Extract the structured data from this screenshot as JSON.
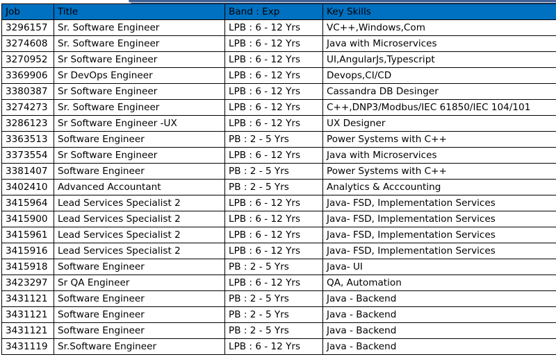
{
  "table": {
    "headers": [
      "Job",
      "Title",
      "Band : Exp",
      "Key Skills"
    ],
    "rows": [
      [
        "3296157",
        "Sr. Software Engineer",
        "LPB : 6 - 12 Yrs",
        "VC++,Windows,Com"
      ],
      [
        "3274608",
        "Sr. Software Engineer",
        "LPB : 6 - 12 Yrs",
        "Java with Microservices"
      ],
      [
        "3270952",
        "Sr Software Engineer",
        "LPB : 6 - 12 Yrs",
        "UI,AngularJs,Typescript"
      ],
      [
        "3369906",
        "Sr DevOps Engineer",
        "LPB : 6 - 12 Yrs",
        "Devops,CI/CD"
      ],
      [
        "3380387",
        "Sr Software Engineer",
        "LPB : 6 - 12 Yrs",
        "Cassandra DB Desinger"
      ],
      [
        "3274273",
        "Sr. Software Engineer",
        "LPB : 6 - 12 Yrs",
        "C++,DNP3/Modbus/IEC 61850/IEC 104/101"
      ],
      [
        "3286123",
        "Sr Software Engineer -UX",
        "LPB : 6 - 12 Yrs",
        "UX Designer"
      ],
      [
        "3363513",
        "Software Engineer",
        "PB : 2 - 5 Yrs",
        "Power Systems with C++"
      ],
      [
        "3373554",
        "Sr Software  Engineer",
        "LPB : 6 - 12 Yrs",
        "Java with Microservices"
      ],
      [
        "3381407",
        "Software Engineer",
        "PB : 2 - 5 Yrs",
        "Power Systems with C++"
      ],
      [
        "3402410",
        "Advanced Accountant",
        "PB : 2 - 5 Yrs",
        "Analytics & Acccounting"
      ],
      [
        "3415964",
        "Lead Services Specialist 2",
        "LPB : 6 - 12 Yrs",
        "Java- FSD, Implementation Services"
      ],
      [
        "3415900",
        "Lead Services Specialist 2",
        "LPB : 6 - 12 Yrs",
        "Java- FSD, Implementation Services"
      ],
      [
        "3415961",
        "Lead Services Specialist 2",
        "LPB : 6 - 12 Yrs",
        "Java- FSD, Implementation Services"
      ],
      [
        "3415916",
        "Lead Services Specialist 2",
        "LPB : 6 - 12 Yrs",
        "Java- FSD, Implementation Services"
      ],
      [
        "3415918",
        "Software Engineer",
        "PB : 2 - 5 Yrs",
        "Java- UI"
      ],
      [
        "3423297",
        "Sr QA Engineer",
        "LPB : 6 - 12 Yrs",
        "QA, Automation"
      ],
      [
        "3431121",
        "Software Engineer",
        "PB : 2 - 5 Yrs",
        "Java - Backend"
      ],
      [
        "3431121",
        "Software Engineer",
        "PB : 2 - 5 Yrs",
        "Java - Backend"
      ],
      [
        "3431121",
        "Software Engineer",
        "PB : 2 - 5 Yrs",
        "Java - Backend"
      ],
      [
        "3431119",
        "Sr.Software Engineer",
        "LPB : 6 - 12 Yrs",
        "Java - Backend"
      ]
    ]
  }
}
